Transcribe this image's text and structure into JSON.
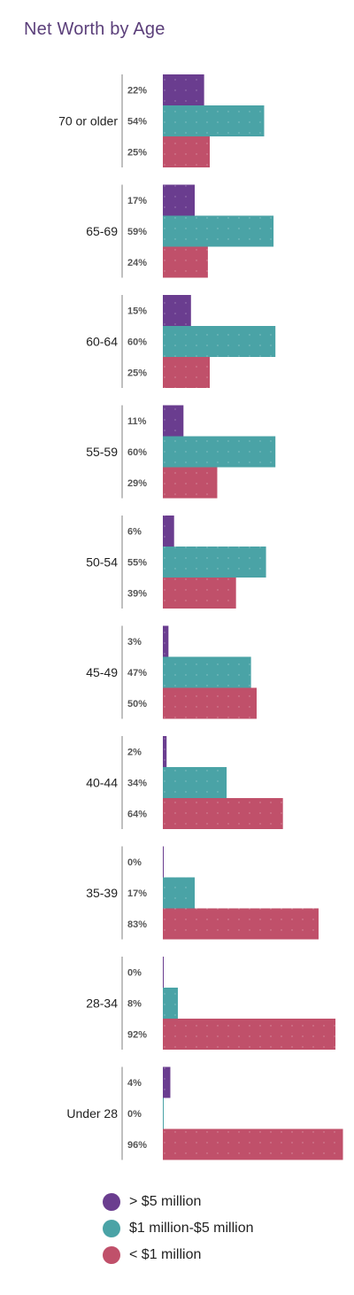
{
  "title": "Net Worth by Age",
  "colors": {
    "gt5m": "#6a3d8f",
    "1to5m": "#4aa3a6",
    "lt1m": "#c0506a",
    "divider": "#bfbfbf",
    "pct_text": "#555555",
    "group_text": "#222222"
  },
  "legend": [
    {
      "label": "> $5 million",
      "color": "#6a3d8f"
    },
    {
      "label": "$1 million-$5 million",
      "color": "#4aa3a6"
    },
    {
      "label": "< $1 million",
      "color": "#c0506a"
    }
  ],
  "chart_data": {
    "type": "bar",
    "orientation": "horizontal",
    "title": "Net Worth by Age",
    "categories": [
      "70 or older",
      "65-69",
      "60-64",
      "55-59",
      "50-54",
      "45-49",
      "40-44",
      "35-39",
      "28-34",
      "Under 28"
    ],
    "series": [
      {
        "name": "> $5 million",
        "values": [
          22,
          17,
          15,
          11,
          6,
          3,
          2,
          0,
          0,
          4
        ]
      },
      {
        "name": "$1 million-$5 million",
        "values": [
          54,
          59,
          60,
          60,
          55,
          47,
          34,
          17,
          8,
          0
        ]
      },
      {
        "name": "< $1 million",
        "values": [
          25,
          24,
          25,
          29,
          39,
          50,
          64,
          83,
          92,
          96
        ]
      }
    ],
    "value_suffix": "%",
    "xlim": [
      0,
      100
    ],
    "grid": false,
    "legend_position": "bottom"
  }
}
